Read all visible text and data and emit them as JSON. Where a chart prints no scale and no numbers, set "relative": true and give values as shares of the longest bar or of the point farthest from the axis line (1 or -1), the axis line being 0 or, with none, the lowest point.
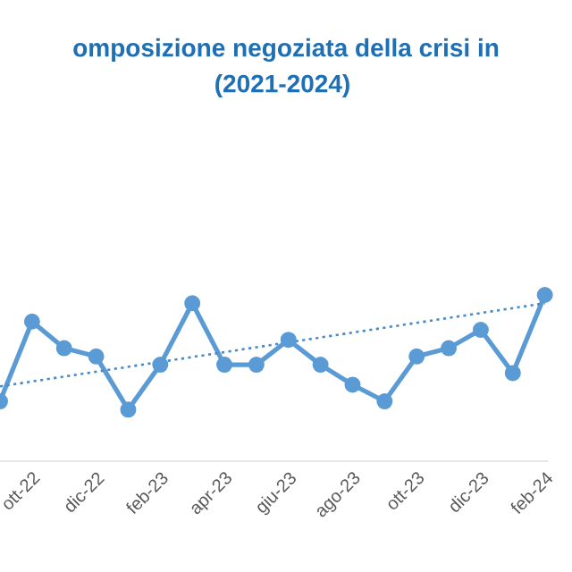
{
  "chart_data": {
    "type": "line",
    "title": "omposizione negoziata della crisi in",
    "subtitle": "(2021-2024)",
    "relative": true,
    "categories": [
      null,
      "ott-22",
      null,
      "dic-22",
      null,
      "feb-23",
      null,
      "apr-23",
      null,
      "giu-23",
      null,
      "ago-23",
      null,
      "ott-23",
      null,
      "dic-23",
      null,
      "feb-24"
    ],
    "series": [
      {
        "color": "#5b9bd5",
        "marker": "circle",
        "line_style": "solid",
        "values": [
          0.36,
          0.84,
          0.68,
          0.63,
          0.31,
          0.58,
          0.95,
          0.58,
          0.58,
          0.73,
          0.58,
          0.46,
          0.36,
          0.63,
          0.68,
          0.79,
          0.53,
          1
        ]
      },
      {
        "type": "line",
        "color": "#4a8ac8",
        "marker": "none",
        "line_style": "dotted",
        "values": [
          0.45,
          null,
          null,
          null,
          null,
          null,
          null,
          null,
          null,
          null,
          null,
          null,
          null,
          null,
          null,
          null,
          null,
          0.95
        ]
      }
    ]
  }
}
